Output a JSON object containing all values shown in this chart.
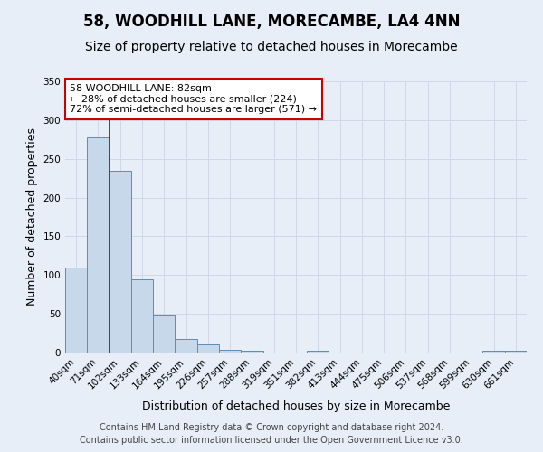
{
  "title": "58, WOODHILL LANE, MORECAMBE, LA4 4NN",
  "subtitle": "Size of property relative to detached houses in Morecambe",
  "xlabel": "Distribution of detached houses by size in Morecambe",
  "ylabel": "Number of detached properties",
  "bar_labels": [
    "40sqm",
    "71sqm",
    "102sqm",
    "133sqm",
    "164sqm",
    "195sqm",
    "226sqm",
    "257sqm",
    "288sqm",
    "319sqm",
    "351sqm",
    "382sqm",
    "413sqm",
    "444sqm",
    "475sqm",
    "506sqm",
    "537sqm",
    "568sqm",
    "599sqm",
    "630sqm",
    "661sqm"
  ],
  "bar_values": [
    110,
    278,
    234,
    95,
    48,
    18,
    11,
    4,
    2,
    0,
    0,
    2,
    0,
    0,
    0,
    0,
    0,
    0,
    0,
    2,
    2
  ],
  "bar_color": "#c8d8eb",
  "bar_edge_color": "#5b8db8",
  "ylim": [
    0,
    350
  ],
  "yticks": [
    0,
    50,
    100,
    150,
    200,
    250,
    300,
    350
  ],
  "red_line_x": 1.5,
  "annotation_title": "58 WOODHILL LANE: 82sqm",
  "annotation_line1": "← 28% of detached houses are smaller (224)",
  "annotation_line2": "72% of semi-detached houses are larger (571) →",
  "footer_line1": "Contains HM Land Registry data © Crown copyright and database right 2024.",
  "footer_line2": "Contains public sector information licensed under the Open Government Licence v3.0.",
  "background_color": "#e8eef8",
  "grid_color": "#d0d8e8",
  "title_fontsize": 12,
  "subtitle_fontsize": 10,
  "tick_fontsize": 7.5,
  "ylabel_fontsize": 9,
  "xlabel_fontsize": 9,
  "footer_fontsize": 7
}
